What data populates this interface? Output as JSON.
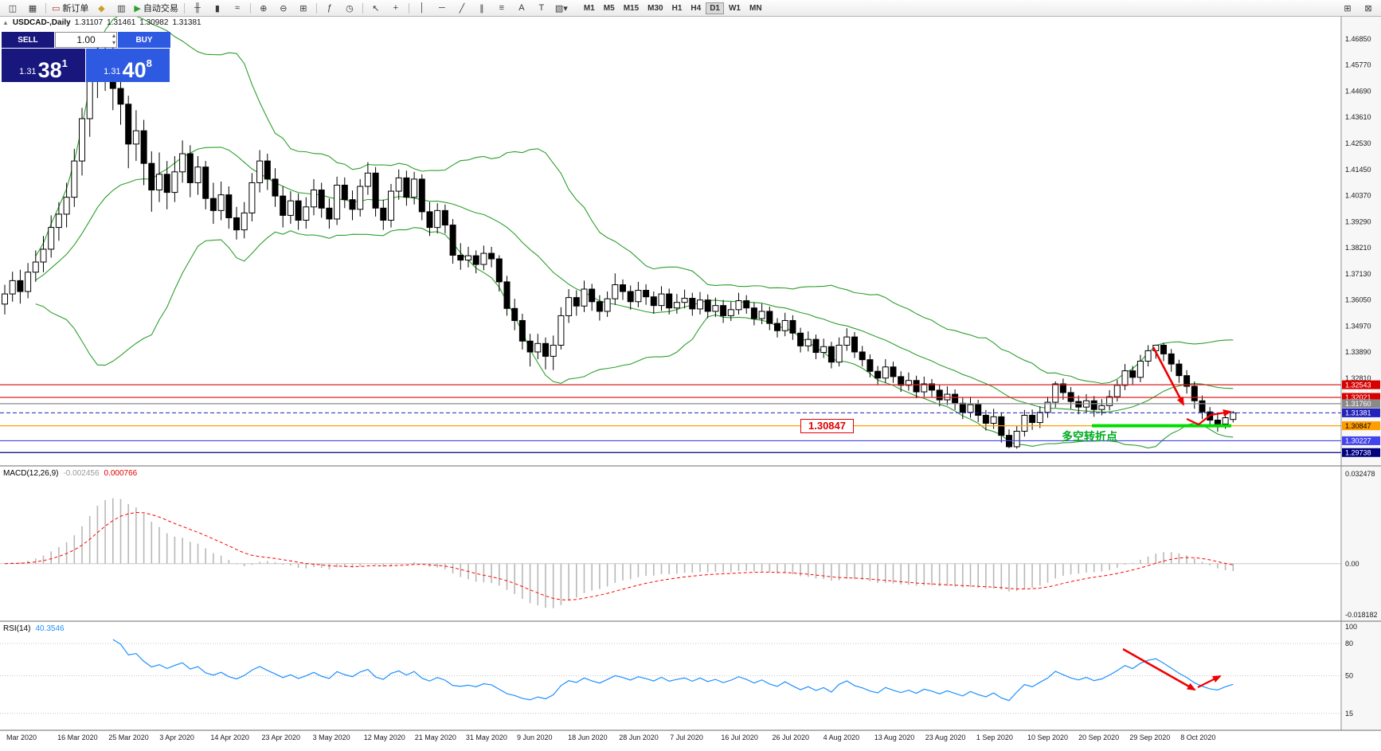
{
  "window": {
    "collapse_icon": "▲",
    "title_symbol": "USDCAD-,Daily",
    "quote_open": "1.31107",
    "quote_high": "1.31461",
    "quote_low": "1.30982",
    "quote_close": "1.31381"
  },
  "toolbar": {
    "items": [
      {
        "type": "icon",
        "name": "new-chart-button",
        "glyph": "◫"
      },
      {
        "type": "icon",
        "name": "chart-profiles-button",
        "glyph": "▦"
      },
      {
        "type": "sep"
      },
      {
        "type": "labeled",
        "name": "new-order-button",
        "glyph": "▭",
        "glyph_color": "#b03030",
        "label": "新订单"
      },
      {
        "type": "icon",
        "name": "metaeditor-button",
        "glyph": "◆",
        "glyph_color": "#c8a028"
      },
      {
        "type": "icon",
        "name": "data-window-button",
        "glyph": "▥"
      },
      {
        "type": "labeled",
        "name": "auto-trading-button",
        "glyph": "▶",
        "glyph_color": "#2f9e2f",
        "label": "自动交易"
      },
      {
        "type": "sep"
      },
      {
        "type": "icon",
        "name": "bar-chart-button",
        "glyph": "╫"
      },
      {
        "type": "icon",
        "name": "candlestick-chart-button",
        "glyph": "▮"
      },
      {
        "type": "icon",
        "name": "line-chart-button",
        "glyph": "≈"
      },
      {
        "type": "sep"
      },
      {
        "type": "icon",
        "name": "zoom-in-button",
        "glyph": "⊕"
      },
      {
        "type": "icon",
        "name": "zoom-out-button",
        "glyph": "⊖"
      },
      {
        "type": "icon",
        "name": "tile-windows-button",
        "glyph": "⊞"
      },
      {
        "type": "sep"
      },
      {
        "type": "icon",
        "name": "indicators-button",
        "glyph": "ƒ"
      },
      {
        "type": "icon",
        "name": "periods-button",
        "glyph": "◷"
      },
      {
        "type": "sep"
      },
      {
        "type": "icon",
        "name": "cursor-button",
        "glyph": "↖"
      },
      {
        "type": "icon",
        "name": "crosshair-button",
        "glyph": "+"
      },
      {
        "type": "sep"
      },
      {
        "type": "icon",
        "name": "vertical-line-button",
        "glyph": "│"
      },
      {
        "type": "icon",
        "name": "horizontal-line-button",
        "glyph": "─"
      },
      {
        "type": "icon",
        "name": "trendline-button",
        "glyph": "╱"
      },
      {
        "type": "icon",
        "name": "channel-button",
        "glyph": "∥"
      },
      {
        "type": "icon",
        "name": "fibonacci-button",
        "glyph": "≡"
      },
      {
        "type": "icon",
        "name": "text-button",
        "glyph": "A"
      },
      {
        "type": "icon",
        "name": "text-label-button",
        "glyph": "T"
      },
      {
        "type": "icon",
        "name": "arrows-dropdown-button",
        "glyph": "▧▾"
      }
    ],
    "timeframes": [
      {
        "label": "M1"
      },
      {
        "label": "M5"
      },
      {
        "label": "M15"
      },
      {
        "label": "M30"
      },
      {
        "label": "H1"
      },
      {
        "label": "H4"
      },
      {
        "label": "D1",
        "active": true
      },
      {
        "label": "W1"
      },
      {
        "label": "MN"
      }
    ],
    "right_items": [
      {
        "type": "icon",
        "name": "window-arrange-button",
        "glyph": "⊞"
      },
      {
        "type": "icon",
        "name": "window-mode-button",
        "glyph": "⊠"
      }
    ]
  },
  "trade_panel": {
    "sell_label": "SELL",
    "buy_label": "BUY",
    "volume": "1.00",
    "sell_price_base": "1.31",
    "sell_price_big": "38",
    "sell_price_sup": "1",
    "buy_price_base": "1.31",
    "buy_price_big": "40",
    "buy_price_sup": "8"
  },
  "price_axis": {
    "ticks": [
      "1.46850",
      "1.45770",
      "1.44690",
      "1.43610",
      "1.42530",
      "1.41450",
      "1.40370",
      "1.39290",
      "1.38210",
      "1.37130",
      "1.36050",
      "1.34970",
      "1.33890",
      "1.32810"
    ]
  },
  "hlines": [
    {
      "price": 1.32543,
      "label": "1.32543",
      "color": "#dd2222",
      "label_bg": "#d90000",
      "label_fg": "#ffffff",
      "style": "solid"
    },
    {
      "price": 1.32021,
      "label": "1.32021",
      "color": "#dd2222",
      "label_bg": "#d90000",
      "label_fg": "#ffffff",
      "style": "solid"
    },
    {
      "price": 1.3176,
      "label": "1.31760",
      "color": "#8a8a8a",
      "label_bg": "#8a8a8a",
      "label_fg": "#ffffff",
      "style": "solid"
    },
    {
      "price": 1.31381,
      "label": "1.31381",
      "color": "#2323bb",
      "label_bg": "#2323bb",
      "label_fg": "#ffffff",
      "style": "dashed",
      "current": true
    },
    {
      "price": 1.30847,
      "label": "1.30847",
      "color": "#ff9d00",
      "label_bg": "#ff9d00",
      "label_fg": "#000000",
      "style": "solid"
    },
    {
      "price": 1.30227,
      "label": "1.30227",
      "color": "#4444ee",
      "label_bg": "#4444ee",
      "label_fg": "#ffffff",
      "style": "solid"
    },
    {
      "price": 1.29738,
      "label": "1.29738",
      "color": "#000080",
      "label_bg": "#000080",
      "label_fg": "#ffffff",
      "style": "solid"
    }
  ],
  "macd_panel": {
    "label": "MACD(12,26,9)",
    "main_value": "-0.002456",
    "signal_value": "0.000766",
    "axis_labels": [
      "0.032478",
      "0.00",
      "-0.018182"
    ],
    "histogram_color": "#b8b8b8",
    "signal_color": "#ff0000"
  },
  "rsi_panel": {
    "label": "RSI(14)",
    "value": "40.3546",
    "axis_labels": [
      "100",
      "80",
      "50",
      "15"
    ],
    "levels": [
      80,
      50,
      15
    ],
    "line_color": "#1e90ff"
  },
  "annotations": {
    "price_callout": "1.30847",
    "turning_point_text": "多空转折点",
    "arrow_color": "#f00000",
    "highlight_line_color": "#00dd00"
  },
  "chart_data": {
    "type": "candlestick",
    "symbol": "USDCAD",
    "timeframe": "Daily",
    "ylim": [
      1.2922,
      1.478
    ],
    "x_tick_labels": [
      "Mar 2020",
      "16 Mar 2020",
      "25 Mar 2020",
      "3 Apr 2020",
      "14 Apr 2020",
      "23 Apr 2020",
      "3 May 2020",
      "12 May 2020",
      "21 May 2020",
      "31 May 2020",
      "9 Jun 2020",
      "18 Jun 2020",
      "28 Jun 2020",
      "7 Jul 2020",
      "16 Jul 2020",
      "26 Jul 2020",
      "4 Aug 2020",
      "13 Aug 2020",
      "23 Aug 2020",
      "1 Sep 2020",
      "10 Sep 2020",
      "20 Sep 2020",
      "29 Sep 2020",
      "8 Oct 2020"
    ],
    "overlays": {
      "bollinger": {
        "period": 20,
        "deviation": 2,
        "color": "#2d9e2d"
      }
    },
    "indicators": [
      {
        "type": "macd",
        "fast": 12,
        "slow": 26,
        "signal": 9,
        "ylim": [
          -0.018182,
          0.032478
        ]
      },
      {
        "type": "rsi",
        "period": 14,
        "ylim": [
          0,
          100
        ]
      }
    ],
    "candles": [
      [
        1.3588,
        1.3668,
        1.3545,
        1.363
      ],
      [
        1.363,
        1.3722,
        1.3598,
        1.3685
      ],
      [
        1.3685,
        1.373,
        1.359,
        1.364
      ],
      [
        1.364,
        1.3758,
        1.3612,
        1.372
      ],
      [
        1.372,
        1.381,
        1.368,
        1.3762
      ],
      [
        1.3762,
        1.387,
        1.372,
        1.3815
      ],
      [
        1.3815,
        1.3955,
        1.378,
        1.3905
      ],
      [
        1.3905,
        1.401,
        1.385,
        1.396
      ],
      [
        1.396,
        1.409,
        1.3905,
        1.403
      ],
      [
        1.403,
        1.423,
        1.399,
        1.418
      ],
      [
        1.418,
        1.44,
        1.412,
        1.4355
      ],
      [
        1.4355,
        1.457,
        1.428,
        1.4515
      ],
      [
        1.4515,
        1.4669,
        1.444,
        1.464
      ],
      [
        1.464,
        1.4668,
        1.447,
        1.456
      ],
      [
        1.456,
        1.4655,
        1.439,
        1.448
      ],
      [
        1.448,
        1.456,
        1.433,
        1.4415
      ],
      [
        1.4415,
        1.445,
        1.415,
        1.425
      ],
      [
        1.425,
        1.439,
        1.418,
        1.4305
      ],
      [
        1.4305,
        1.435,
        1.408,
        1.417
      ],
      [
        1.417,
        1.422,
        1.397,
        1.406
      ],
      [
        1.406,
        1.4215,
        1.401,
        1.4125
      ],
      [
        1.4125,
        1.418,
        1.398,
        1.405
      ],
      [
        1.405,
        1.42,
        1.401,
        1.4135
      ],
      [
        1.4135,
        1.4265,
        1.409,
        1.421
      ],
      [
        1.421,
        1.4245,
        1.403,
        1.409
      ],
      [
        1.409,
        1.42,
        1.404,
        1.4155
      ],
      [
        1.4155,
        1.418,
        1.398,
        1.4025
      ],
      [
        1.4025,
        1.409,
        1.392,
        1.3975
      ],
      [
        1.3975,
        1.4095,
        1.3935,
        1.404
      ],
      [
        1.404,
        1.4075,
        1.39,
        1.3945
      ],
      [
        1.3945,
        1.399,
        1.3855,
        1.3895
      ],
      [
        1.3895,
        1.401,
        1.386,
        1.3965
      ],
      [
        1.3965,
        1.413,
        1.393,
        1.409
      ],
      [
        1.409,
        1.4225,
        1.405,
        1.418
      ],
      [
        1.418,
        1.421,
        1.406,
        1.4105
      ],
      [
        1.4105,
        1.415,
        1.399,
        1.4035
      ],
      [
        1.4035,
        1.4075,
        1.3905,
        1.3955
      ],
      [
        1.3955,
        1.4055,
        1.392,
        1.4015
      ],
      [
        1.4015,
        1.4045,
        1.3895,
        1.3935
      ],
      [
        1.3935,
        1.403,
        1.39,
        1.399
      ],
      [
        1.399,
        1.4105,
        1.3955,
        1.406
      ],
      [
        1.406,
        1.409,
        1.3945,
        1.3985
      ],
      [
        1.3985,
        1.4025,
        1.39,
        1.394
      ],
      [
        1.394,
        1.4115,
        1.3915,
        1.408
      ],
      [
        1.408,
        1.4112,
        1.3985,
        1.402
      ],
      [
        1.402,
        1.4058,
        1.3935,
        1.398
      ],
      [
        1.398,
        1.4105,
        1.395,
        1.4075
      ],
      [
        1.4075,
        1.4175,
        1.404,
        1.413
      ],
      [
        1.413,
        1.4155,
        1.395,
        1.3985
      ],
      [
        1.3985,
        1.402,
        1.3895,
        1.3935
      ],
      [
        1.3935,
        1.4085,
        1.3905,
        1.4055
      ],
      [
        1.4055,
        1.4145,
        1.402,
        1.411
      ],
      [
        1.411,
        1.414,
        1.3995,
        1.403
      ],
      [
        1.403,
        1.4135,
        1.4,
        1.4105
      ],
      [
        1.4105,
        1.4125,
        1.3935,
        1.397
      ],
      [
        1.397,
        1.401,
        1.387,
        1.3905
      ],
      [
        1.3905,
        1.4005,
        1.388,
        1.3975
      ],
      [
        1.3975,
        1.4,
        1.388,
        1.3915
      ],
      [
        1.3915,
        1.394,
        1.3755,
        1.379
      ],
      [
        1.379,
        1.384,
        1.373,
        1.377
      ],
      [
        1.377,
        1.3825,
        1.374,
        1.3788
      ],
      [
        1.3788,
        1.381,
        1.3715,
        1.3752
      ],
      [
        1.3752,
        1.383,
        1.3728,
        1.3798
      ],
      [
        1.3798,
        1.3825,
        1.374,
        1.3775
      ],
      [
        1.3775,
        1.379,
        1.364,
        1.368
      ],
      [
        1.368,
        1.3705,
        1.354,
        1.357
      ],
      [
        1.357,
        1.361,
        1.348,
        1.352
      ],
      [
        1.352,
        1.3548,
        1.34,
        1.3435
      ],
      [
        1.3435,
        1.3465,
        1.333,
        1.339
      ],
      [
        1.339,
        1.3465,
        1.336,
        1.3425
      ],
      [
        1.3425,
        1.345,
        1.3318,
        1.3372
      ],
      [
        1.3372,
        1.3458,
        1.3315,
        1.3418
      ],
      [
        1.3418,
        1.3575,
        1.34,
        1.354
      ],
      [
        1.354,
        1.365,
        1.351,
        1.3615
      ],
      [
        1.3615,
        1.3645,
        1.354,
        1.358
      ],
      [
        1.358,
        1.3685,
        1.3555,
        1.365
      ],
      [
        1.365,
        1.3672,
        1.356,
        1.3598
      ],
      [
        1.3598,
        1.3625,
        1.352,
        1.3558
      ],
      [
        1.3558,
        1.364,
        1.3535,
        1.361
      ],
      [
        1.361,
        1.3715,
        1.3585,
        1.3668
      ],
      [
        1.3668,
        1.369,
        1.3605,
        1.364
      ],
      [
        1.364,
        1.3665,
        1.3565,
        1.3598
      ],
      [
        1.3598,
        1.368,
        1.3575,
        1.3645
      ],
      [
        1.3645,
        1.367,
        1.3585,
        1.3618
      ],
      [
        1.3618,
        1.364,
        1.3548,
        1.3582
      ],
      [
        1.3582,
        1.3662,
        1.356,
        1.363
      ],
      [
        1.363,
        1.3652,
        1.3545,
        1.3572
      ],
      [
        1.3572,
        1.363,
        1.3548,
        1.3595
      ],
      [
        1.3595,
        1.3648,
        1.357,
        1.3612
      ],
      [
        1.3612,
        1.3635,
        1.354,
        1.3568
      ],
      [
        1.3568,
        1.3638,
        1.3545,
        1.3605
      ],
      [
        1.3605,
        1.3628,
        1.353,
        1.3558
      ],
      [
        1.3558,
        1.3615,
        1.3535,
        1.3582
      ],
      [
        1.3582,
        1.3605,
        1.351,
        1.354
      ],
      [
        1.354,
        1.3598,
        1.3518,
        1.3565
      ],
      [
        1.3565,
        1.3635,
        1.3545,
        1.3602
      ],
      [
        1.3602,
        1.3625,
        1.3548,
        1.3572
      ],
      [
        1.3572,
        1.3595,
        1.35,
        1.3528
      ],
      [
        1.3528,
        1.359,
        1.3505,
        1.3558
      ],
      [
        1.3558,
        1.3578,
        1.348,
        1.3508
      ],
      [
        1.3508,
        1.353,
        1.345,
        1.3478
      ],
      [
        1.3478,
        1.3552,
        1.3455,
        1.352
      ],
      [
        1.352,
        1.3542,
        1.344,
        1.3468
      ],
      [
        1.3468,
        1.349,
        1.3388,
        1.3415
      ],
      [
        1.3415,
        1.3475,
        1.3392,
        1.3442
      ],
      [
        1.3442,
        1.3462,
        1.336,
        1.3388
      ],
      [
        1.3388,
        1.3445,
        1.3365,
        1.3412
      ],
      [
        1.3412,
        1.3432,
        1.3322,
        1.3348
      ],
      [
        1.3348,
        1.345,
        1.333,
        1.3418
      ],
      [
        1.3418,
        1.3488,
        1.3395,
        1.3452
      ],
      [
        1.3452,
        1.3472,
        1.3365,
        1.339
      ],
      [
        1.339,
        1.3415,
        1.333,
        1.3358
      ],
      [
        1.3358,
        1.338,
        1.3285,
        1.331
      ],
      [
        1.331,
        1.3332,
        1.3255,
        1.3282
      ],
      [
        1.3282,
        1.336,
        1.3262,
        1.3328
      ],
      [
        1.3328,
        1.335,
        1.3262,
        1.3288
      ],
      [
        1.3288,
        1.331,
        1.3225,
        1.3252
      ],
      [
        1.3252,
        1.3305,
        1.323,
        1.3272
      ],
      [
        1.3272,
        1.3292,
        1.3198,
        1.3225
      ],
      [
        1.3225,
        1.3288,
        1.3205,
        1.3258
      ],
      [
        1.3258,
        1.3278,
        1.3205,
        1.3232
      ],
      [
        1.3232,
        1.3255,
        1.3165,
        1.3192
      ],
      [
        1.3192,
        1.3248,
        1.317,
        1.3215
      ],
      [
        1.3215,
        1.3235,
        1.315,
        1.3178
      ],
      [
        1.3178,
        1.32,
        1.3112,
        1.314
      ],
      [
        1.314,
        1.3205,
        1.3118,
        1.3172
      ],
      [
        1.3172,
        1.3192,
        1.31,
        1.3128
      ],
      [
        1.3128,
        1.315,
        1.3065,
        1.3095
      ],
      [
        1.3095,
        1.3155,
        1.3072,
        1.3122
      ],
      [
        1.3122,
        1.314,
        1.3015,
        1.3045
      ],
      [
        1.3045,
        1.307,
        1.2992,
        1.2998
      ],
      [
        1.2998,
        1.3085,
        1.299,
        1.3062
      ],
      [
        1.3062,
        1.315,
        1.304,
        1.3128
      ],
      [
        1.3128,
        1.3152,
        1.3068,
        1.3098
      ],
      [
        1.3098,
        1.3165,
        1.3075,
        1.314
      ],
      [
        1.314,
        1.3205,
        1.3118,
        1.3182
      ],
      [
        1.3182,
        1.3268,
        1.316,
        1.3258
      ],
      [
        1.3258,
        1.328,
        1.3192,
        1.3222
      ],
      [
        1.3222,
        1.3245,
        1.3155,
        1.3185
      ],
      [
        1.3185,
        1.321,
        1.3132,
        1.3162
      ],
      [
        1.3162,
        1.3215,
        1.314,
        1.3188
      ],
      [
        1.3188,
        1.3208,
        1.3122,
        1.3152
      ],
      [
        1.3152,
        1.3195,
        1.3128,
        1.3168
      ],
      [
        1.3168,
        1.3232,
        1.3148,
        1.3205
      ],
      [
        1.3205,
        1.3275,
        1.3185,
        1.3252
      ],
      [
        1.3252,
        1.334,
        1.3232,
        1.3312
      ],
      [
        1.3312,
        1.3332,
        1.3255,
        1.3285
      ],
      [
        1.3285,
        1.3378,
        1.3265,
        1.3352
      ],
      [
        1.3352,
        1.3418,
        1.333,
        1.3395
      ],
      [
        1.3395,
        1.342,
        1.3362,
        1.3418
      ],
      [
        1.3418,
        1.3428,
        1.3352,
        1.3382
      ],
      [
        1.3382,
        1.3402,
        1.3308,
        1.334
      ],
      [
        1.334,
        1.3358,
        1.3262,
        1.3292
      ],
      [
        1.3292,
        1.3315,
        1.3218,
        1.3248
      ],
      [
        1.3248,
        1.3268,
        1.3155,
        1.3188
      ],
      [
        1.3188,
        1.321,
        1.3112,
        1.3142
      ],
      [
        1.3142,
        1.3162,
        1.3078,
        1.3108
      ],
      [
        1.3108,
        1.3135,
        1.306,
        1.3092
      ],
      [
        1.3092,
        1.3148,
        1.3072,
        1.3118
      ],
      [
        1.31107,
        1.31461,
        1.30982,
        1.31381
      ]
    ]
  }
}
